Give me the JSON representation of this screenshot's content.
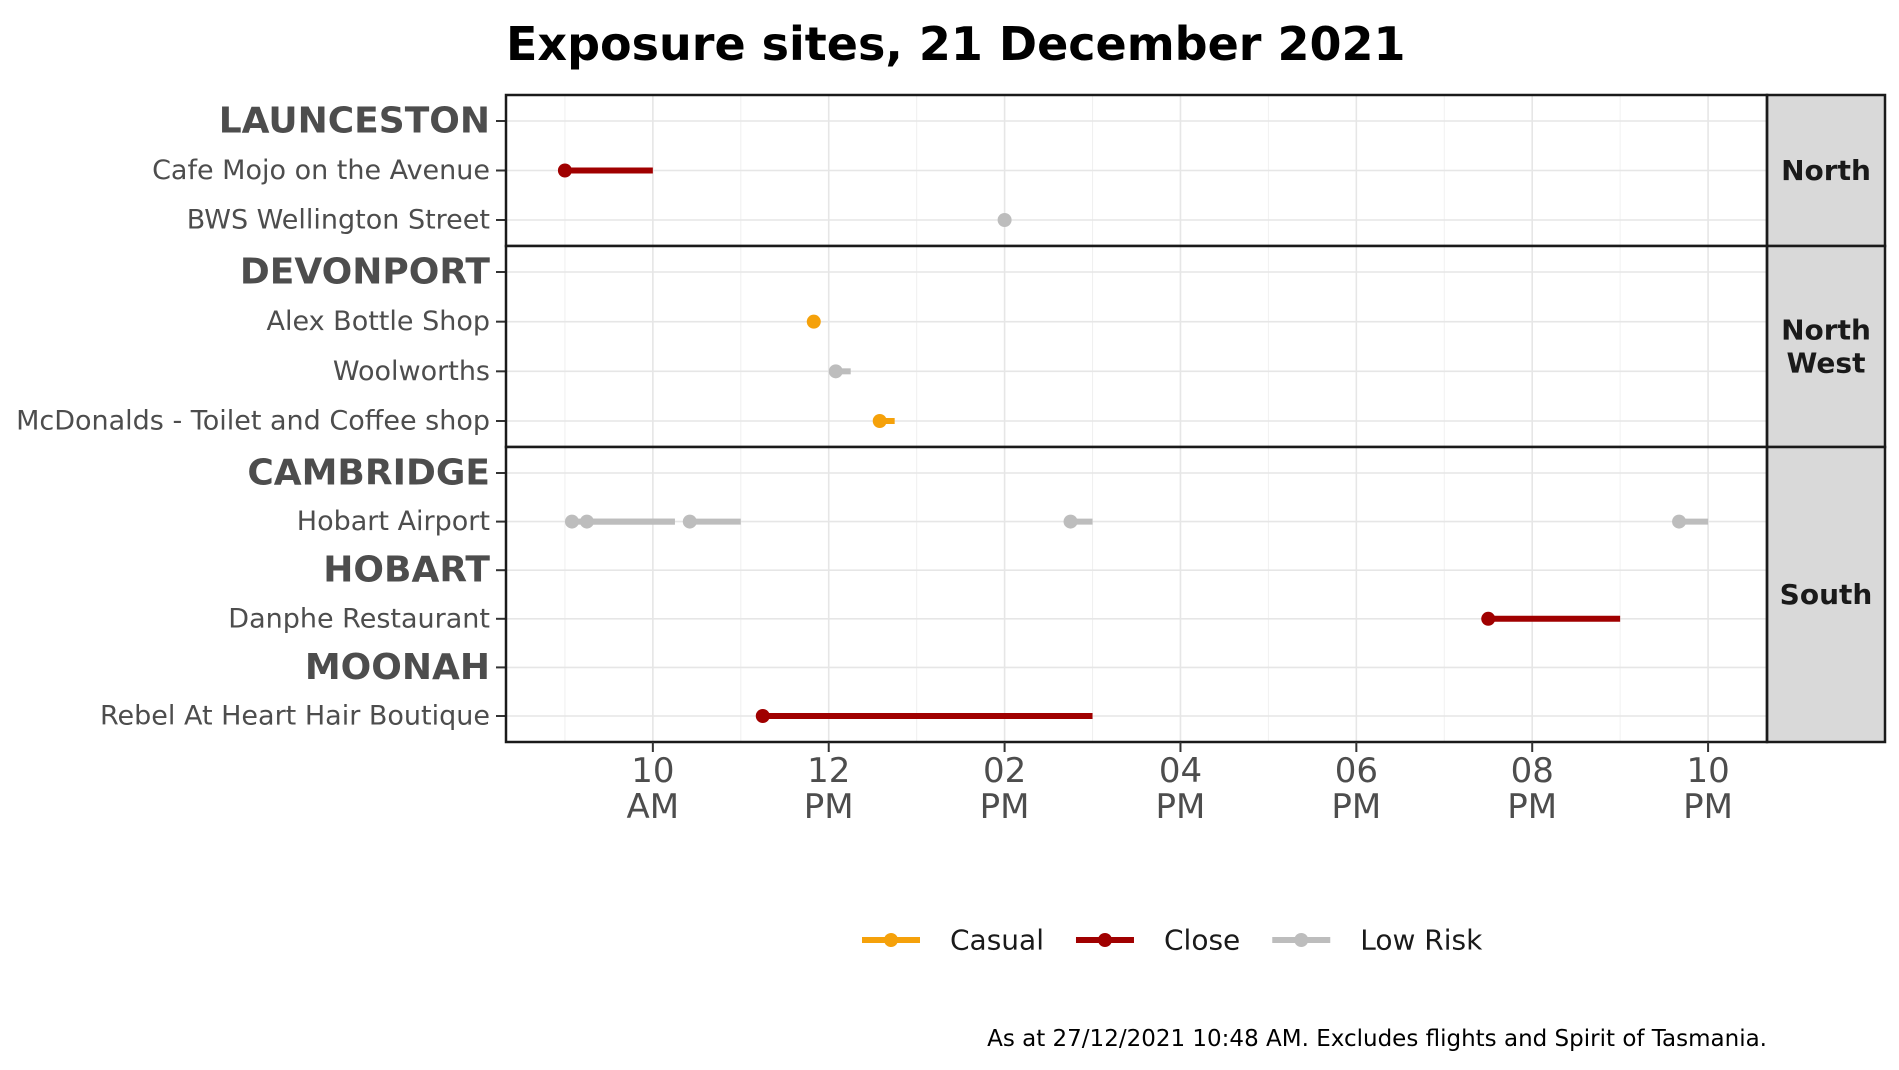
{
  "chart_data": {
    "type": "dumbbell-timeline",
    "title": "Exposure sites, 21 December 2021",
    "caption": "As at 27/12/2021 10:48 AM. Excludes flights and Spirit of Tasmania.",
    "x_range": [
      8.33,
      22.67
    ],
    "x_ticks": [
      {
        "hour": 10,
        "line1": "10",
        "line2": "AM"
      },
      {
        "hour": 12,
        "line1": "12",
        "line2": "PM"
      },
      {
        "hour": 14,
        "line1": "02",
        "line2": "PM"
      },
      {
        "hour": 16,
        "line1": "04",
        "line2": "PM"
      },
      {
        "hour": 18,
        "line1": "06",
        "line2": "PM"
      },
      {
        "hour": 20,
        "line1": "08",
        "line2": "PM"
      },
      {
        "hour": 22,
        "line1": "10",
        "line2": "PM"
      }
    ],
    "colors": {
      "Casual": "#f5a10a",
      "Close": "#a00000",
      "Low Risk": "#bdbdbd"
    },
    "legend": [
      "Casual",
      "Close",
      "Low Risk"
    ],
    "facets": [
      {
        "region": "North",
        "rows": [
          {
            "label": "LAUNCESTON",
            "type": "town",
            "segments": []
          },
          {
            "label": "Cafe Mojo on the Avenue",
            "type": "site",
            "segments": [
              {
                "start": 9.0,
                "end": 10.0,
                "risk": "Close"
              }
            ]
          },
          {
            "label": "BWS Wellington Street",
            "type": "site",
            "segments": [
              {
                "start": 14.0,
                "end": 14.0,
                "risk": "Low Risk"
              }
            ]
          }
        ]
      },
      {
        "region": "North\nWest",
        "rows": [
          {
            "label": "DEVONPORT",
            "type": "town",
            "segments": []
          },
          {
            "label": "Alex Bottle Shop",
            "type": "site",
            "segments": [
              {
                "start": 11.83,
                "end": 11.83,
                "risk": "Casual"
              }
            ]
          },
          {
            "label": "Woolworths",
            "type": "site",
            "segments": [
              {
                "start": 12.08,
                "end": 12.25,
                "risk": "Low Risk"
              }
            ]
          },
          {
            "label": "McDonalds - Toilet and Coffee shop",
            "type": "site",
            "segments": [
              {
                "start": 12.58,
                "end": 12.75,
                "risk": "Casual"
              }
            ]
          }
        ]
      },
      {
        "region": "South",
        "rows": [
          {
            "label": "CAMBRIDGE",
            "type": "town",
            "segments": []
          },
          {
            "label": "Hobart Airport",
            "type": "site",
            "segments": [
              {
                "start": 9.08,
                "end": 10.25,
                "risk": "Low Risk"
              },
              {
                "start": 9.25,
                "end": 10.25,
                "risk": "Low Risk"
              },
              {
                "start": 10.42,
                "end": 11.0,
                "risk": "Low Risk"
              },
              {
                "start": 14.75,
                "end": 15.0,
                "risk": "Low Risk"
              },
              {
                "start": 21.67,
                "end": 22.0,
                "risk": "Low Risk"
              }
            ]
          },
          {
            "label": "HOBART",
            "type": "town",
            "segments": []
          },
          {
            "label": "Danphe Restaurant",
            "type": "site",
            "segments": [
              {
                "start": 19.5,
                "end": 21.0,
                "risk": "Close"
              }
            ]
          },
          {
            "label": "MOONAH",
            "type": "town",
            "segments": []
          },
          {
            "label": "Rebel At Heart Hair Boutique",
            "type": "site",
            "segments": [
              {
                "start": 11.25,
                "end": 15.0,
                "risk": "Close"
              }
            ]
          }
        ]
      }
    ]
  }
}
